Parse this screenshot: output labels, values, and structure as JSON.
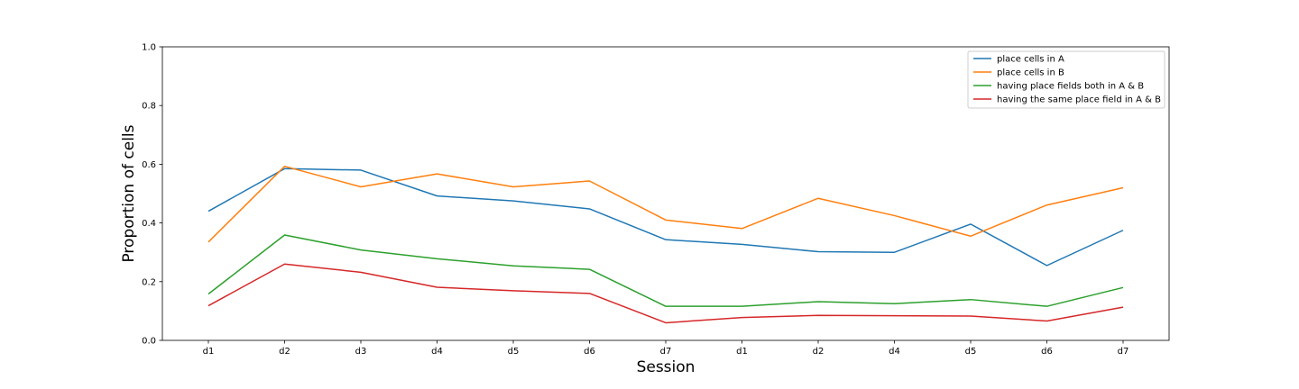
{
  "chart_data": {
    "type": "line",
    "categories": [
      "d1",
      "d2",
      "d3",
      "d4",
      "d5",
      "d6",
      "d7",
      "d1",
      "d2",
      "d4",
      "d5",
      "d6",
      "d7"
    ],
    "series": [
      {
        "name": "place cells in A",
        "color": "#1f77b4",
        "values": [
          0.44,
          0.585,
          0.58,
          0.492,
          0.475,
          0.448,
          0.343,
          0.327,
          0.302,
          0.3,
          0.396,
          0.255,
          0.375
        ]
      },
      {
        "name": "place cells in B",
        "color": "#ff7f0e",
        "values": [
          0.335,
          0.593,
          0.523,
          0.567,
          0.523,
          0.543,
          0.41,
          0.381,
          0.484,
          0.425,
          0.355,
          0.461,
          0.52
        ]
      },
      {
        "name": "having place fields both in A & B",
        "color": "#2ca02c",
        "values": [
          0.158,
          0.359,
          0.308,
          0.278,
          0.254,
          0.242,
          0.116,
          0.116,
          0.132,
          0.125,
          0.139,
          0.116,
          0.18
        ]
      },
      {
        "name": "having the same place field in A & B",
        "color": "#d62728",
        "values": [
          0.118,
          0.26,
          0.232,
          0.181,
          0.169,
          0.16,
          0.06,
          0.078,
          0.085,
          0.084,
          0.083,
          0.066,
          0.113
        ]
      }
    ],
    "title": "",
    "xlabel": "Session",
    "ylabel": "Proportion of cells",
    "ylim": [
      0,
      1.0
    ],
    "yticks": [
      "0.0",
      "0.2",
      "0.4",
      "0.6",
      "0.8",
      "1.0"
    ],
    "grid": false,
    "legend": "top-right"
  }
}
